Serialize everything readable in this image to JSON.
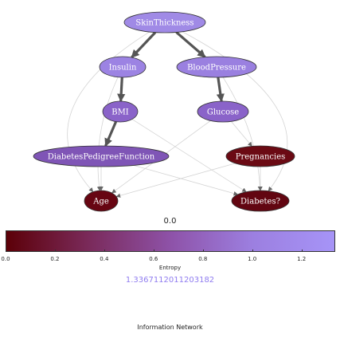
{
  "nodes": [
    {
      "id": "SkinThickness",
      "label": "SkinThickness",
      "color": "#a08ae6"
    },
    {
      "id": "Insulin",
      "label": "Insulin",
      "color": "#9c83e3"
    },
    {
      "id": "BloodPressure",
      "label": "BloodPressure",
      "color": "#9a80e0"
    },
    {
      "id": "BMI",
      "label": "BMI",
      "color": "#8a63c9"
    },
    {
      "id": "Glucose",
      "label": "Glucose",
      "color": "#8a63c9"
    },
    {
      "id": "DiabetesPedigreeFunction",
      "label": "DiabetesPedigreeFunction",
      "color": "#7f55b6"
    },
    {
      "id": "Pregnancies",
      "label": "Pregnancies",
      "color": "#6b0a14"
    },
    {
      "id": "Age",
      "label": "Age",
      "color": "#670512"
    },
    {
      "id": "Diabetes",
      "label": "Diabetes?",
      "color": "#620611"
    }
  ],
  "edges": [
    {
      "from": "SkinThickness",
      "to": "Insulin",
      "style": "strong"
    },
    {
      "from": "SkinThickness",
      "to": "BloodPressure",
      "style": "strong"
    },
    {
      "from": "Insulin",
      "to": "BMI",
      "style": "strong"
    },
    {
      "from": "BloodPressure",
      "to": "Glucose",
      "style": "strong"
    },
    {
      "from": "BMI",
      "to": "DiabetesPedigreeFunction",
      "style": "strong"
    },
    {
      "from": "Glucose",
      "to": "Pregnancies",
      "style": "weak"
    },
    {
      "from": "DiabetesPedigreeFunction",
      "to": "Age",
      "style": "weak"
    },
    {
      "from": "DiabetesPedigreeFunction",
      "to": "Diabetes",
      "style": "weak"
    },
    {
      "from": "Pregnancies",
      "to": "Age",
      "style": "weak"
    },
    {
      "from": "Pregnancies",
      "to": "Diabetes",
      "style": "weak"
    },
    {
      "from": "Glucose",
      "to": "Age",
      "style": "weak"
    },
    {
      "from": "BMI",
      "to": "Diabetes",
      "style": "weak"
    },
    {
      "from": "Insulin",
      "to": "Age",
      "style": "weak"
    },
    {
      "from": "BloodPressure",
      "to": "Diabetes",
      "style": "weak"
    },
    {
      "from": "SkinThickness",
      "to": "Age",
      "style": "weak"
    },
    {
      "from": "SkinThickness",
      "to": "Diabetes",
      "style": "weak"
    }
  ],
  "colorbar": {
    "min_value_text": "0.0",
    "max_value_text": "1.3367112011203182",
    "label": "Entropy",
    "range": [
      0,
      1.3367112011203182
    ],
    "ticks": [
      "0.0",
      "0.2",
      "0.4",
      "0.6",
      "0.8",
      "1.0",
      "1.2"
    ],
    "colors": [
      "#5c0008",
      "#7a2a5a",
      "#8e52a8",
      "#9c7fe0",
      "#a694f7"
    ],
    "max_value_color": "#8f7cf0"
  },
  "caption": "Information Network"
}
